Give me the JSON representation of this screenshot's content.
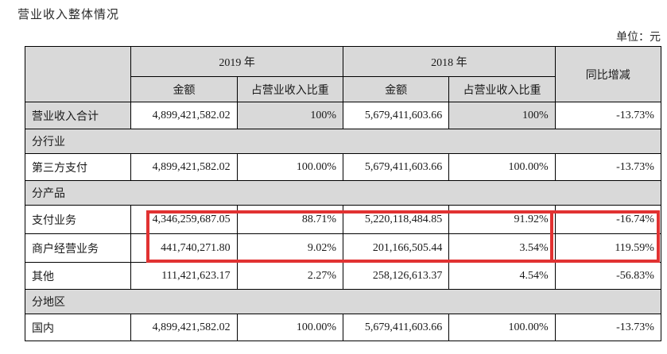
{
  "page": {
    "title": "营业收入整体情况",
    "unit_label": "单位：元"
  },
  "colors": {
    "highlight_red": "#e13232",
    "header_gray": "#d9d9d9",
    "grid_line": "#000000"
  },
  "table": {
    "headers": {
      "year_2019": "2019 年",
      "year_2018": "2018 年",
      "amount_2019": "金额",
      "share_2019": "占营业收入比重",
      "amount_2018": "金额",
      "share_2018": "占营业收入比重",
      "yoy": "同比增减"
    },
    "rows": [
      {
        "type": "data",
        "label": "营业收入合计",
        "amount_2019": "4,899,421,582.02",
        "share_2019": "100%",
        "amount_2018": "5,679,411,603.66",
        "share_2018": "100%",
        "yoy": "-13.73%"
      },
      {
        "type": "section",
        "label": "分行业"
      },
      {
        "type": "data",
        "label": "第三方支付",
        "amount_2019": "4,899,421,582.02",
        "share_2019": "100.00%",
        "amount_2018": "5,679,411,603.66",
        "share_2018": "100.00%",
        "yoy": "-13.73%"
      },
      {
        "type": "section",
        "label": "分产品"
      },
      {
        "type": "data",
        "label": "支付业务",
        "amount_2019": "4,346,259,687.05",
        "share_2019": "88.71%",
        "amount_2018": "5,220,118,484.85",
        "share_2018": "91.92%",
        "yoy": "-16.74%"
      },
      {
        "type": "data",
        "label": "商户经营业务",
        "amount_2019": "441,740,271.80",
        "share_2019": "9.02%",
        "amount_2018": "201,166,505.44",
        "share_2018": "3.54%",
        "yoy": "119.59%"
      },
      {
        "type": "data",
        "label": "其他",
        "amount_2019": "111,421,623.17",
        "share_2019": "2.27%",
        "amount_2018": "258,126,613.37",
        "share_2018": "4.54%",
        "yoy": "-56.83%"
      },
      {
        "type": "section",
        "label": "分地区"
      },
      {
        "type": "data",
        "label": "国内",
        "amount_2019": "4,899,421,582.02",
        "share_2019": "100.00%",
        "amount_2018": "5,679,411,603.66",
        "share_2018": "100.00%",
        "yoy": "-13.73%"
      }
    ],
    "highlight": {
      "description": "red rectangle around 支付业务 and 商户经营业务 data cells"
    }
  }
}
